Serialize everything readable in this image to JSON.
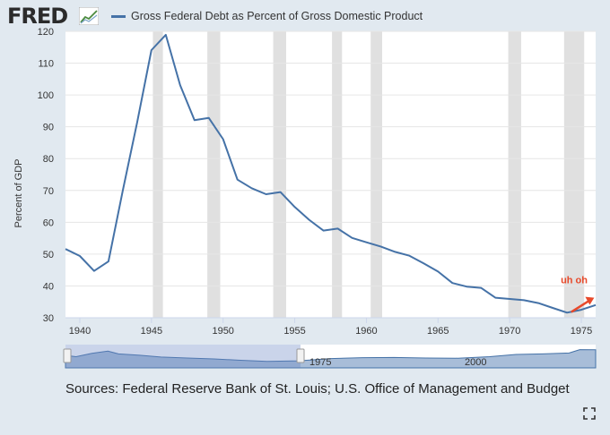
{
  "header": {
    "logo_text": "FRED",
    "legend_label": "Gross Federal Debt as Percent of Gross Domestic Product"
  },
  "colors": {
    "series": "#4572a7",
    "recession": "#e0e0e0",
    "annotation": "#e8492a",
    "background": "#e1e9f0",
    "plot_bg": "#ffffff"
  },
  "footer": {
    "sources": "Sources: Federal Reserve Bank of St. Louis; U.S. Office of Management and Budget"
  },
  "navigator": {
    "labels": [
      "1975",
      "2000"
    ]
  },
  "chart_data": {
    "type": "line",
    "title": "Gross Federal Debt as Percent of Gross Domestic Product",
    "xlabel": "",
    "ylabel": "Percent of GDP",
    "xlim": [
      1939,
      1976
    ],
    "ylim": [
      30,
      120
    ],
    "x_ticks": [
      1940,
      1945,
      1950,
      1955,
      1960,
      1965,
      1970,
      1975
    ],
    "y_ticks": [
      30,
      40,
      50,
      60,
      70,
      80,
      90,
      100,
      110,
      120
    ],
    "grid": true,
    "legend": "top",
    "recessions": [
      [
        1945.1,
        1945.8
      ],
      [
        1948.9,
        1949.8
      ],
      [
        1953.5,
        1954.4
      ],
      [
        1957.6,
        1958.3
      ],
      [
        1960.3,
        1961.1
      ],
      [
        1969.9,
        1970.8
      ],
      [
        1973.8,
        1975.2
      ]
    ],
    "series": [
      {
        "name": "Gross Federal Debt as Percent of Gross Domestic Product",
        "x": [
          1939,
          1940,
          1941,
          1942,
          1943,
          1944,
          1945,
          1946,
          1947,
          1948,
          1949,
          1950,
          1951,
          1952,
          1953,
          1954,
          1955,
          1956,
          1957,
          1958,
          1959,
          1960,
          1961,
          1962,
          1963,
          1964,
          1965,
          1966,
          1967,
          1968,
          1969,
          1970,
          1971,
          1972,
          1973,
          1974,
          1975,
          1976
        ],
        "values": [
          51.6,
          49.4,
          44.7,
          47.7,
          70.0,
          91.4,
          114.1,
          118.9,
          103.1,
          92.1,
          92.8,
          86.1,
          73.4,
          70.7,
          68.8,
          69.5,
          64.8,
          60.8,
          57.4,
          58.0,
          55.1,
          53.7,
          52.4,
          50.7,
          49.5,
          47.1,
          44.5,
          40.9,
          39.8,
          39.4,
          36.3,
          35.9,
          35.5,
          34.6,
          33.1,
          31.6,
          32.5,
          34.0
        ]
      }
    ],
    "annotations": [
      {
        "text": "uh oh",
        "x": 1974.5,
        "y": 42
      }
    ]
  }
}
